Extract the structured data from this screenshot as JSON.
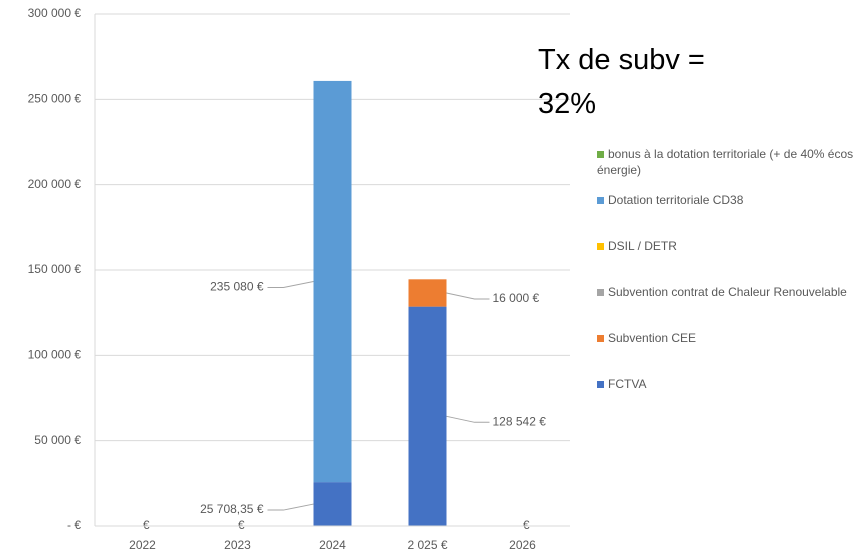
{
  "chart_data": {
    "type": "stacked_bar",
    "annotation": "Tx de subv = 32%",
    "categories": [
      "2022",
      "2023",
      "2024",
      "2 025 €",
      "2026"
    ],
    "series": [
      {
        "name": "FCTVA",
        "color": "#4472c4",
        "values": [
          0,
          0,
          25708.35,
          128542,
          0
        ],
        "value_labels": [
          "- €",
          "- €",
          "25 708,35 €",
          "128 542 €",
          "- €"
        ]
      },
      {
        "name": "Subvention CEE",
        "color": "#ed7d31",
        "values": [
          null,
          null,
          null,
          16000,
          null
        ],
        "value_labels": [
          null,
          null,
          null,
          "16 000 €",
          null
        ]
      },
      {
        "name": "Subvention contrat de  Chaleur Renouvelable",
        "color": "#a5a5a5",
        "values": [
          null,
          null,
          null,
          null,
          null
        ]
      },
      {
        "name": "DSIL / DETR",
        "color": "#ffc000",
        "values": [
          null,
          null,
          null,
          null,
          null
        ]
      },
      {
        "name": "Dotation territoriale CD38",
        "color": "#5b9bd5",
        "values": [
          null,
          null,
          235080,
          null,
          null
        ],
        "value_labels": [
          null,
          null,
          "235 080 €",
          null,
          null
        ]
      },
      {
        "name": "bonus à la dotation territoriale (+ de 40% écos énergie)",
        "color": "#70ad47",
        "values": [
          null,
          null,
          null,
          null,
          null
        ]
      }
    ],
    "ylim": [
      0,
      300000
    ],
    "yticks": [
      {
        "value": 0,
        "label": "- €"
      },
      {
        "value": 50000,
        "label": "50 000 €"
      },
      {
        "value": 100000,
        "label": "100 000 €"
      },
      {
        "value": 150000,
        "label": "150 000 €"
      },
      {
        "value": 200000,
        "label": "200 000 €"
      },
      {
        "value": 250000,
        "label": "250 000 €"
      },
      {
        "value": 300000,
        "label": "300 000 €"
      }
    ],
    "grid": true,
    "legend": "right"
  }
}
